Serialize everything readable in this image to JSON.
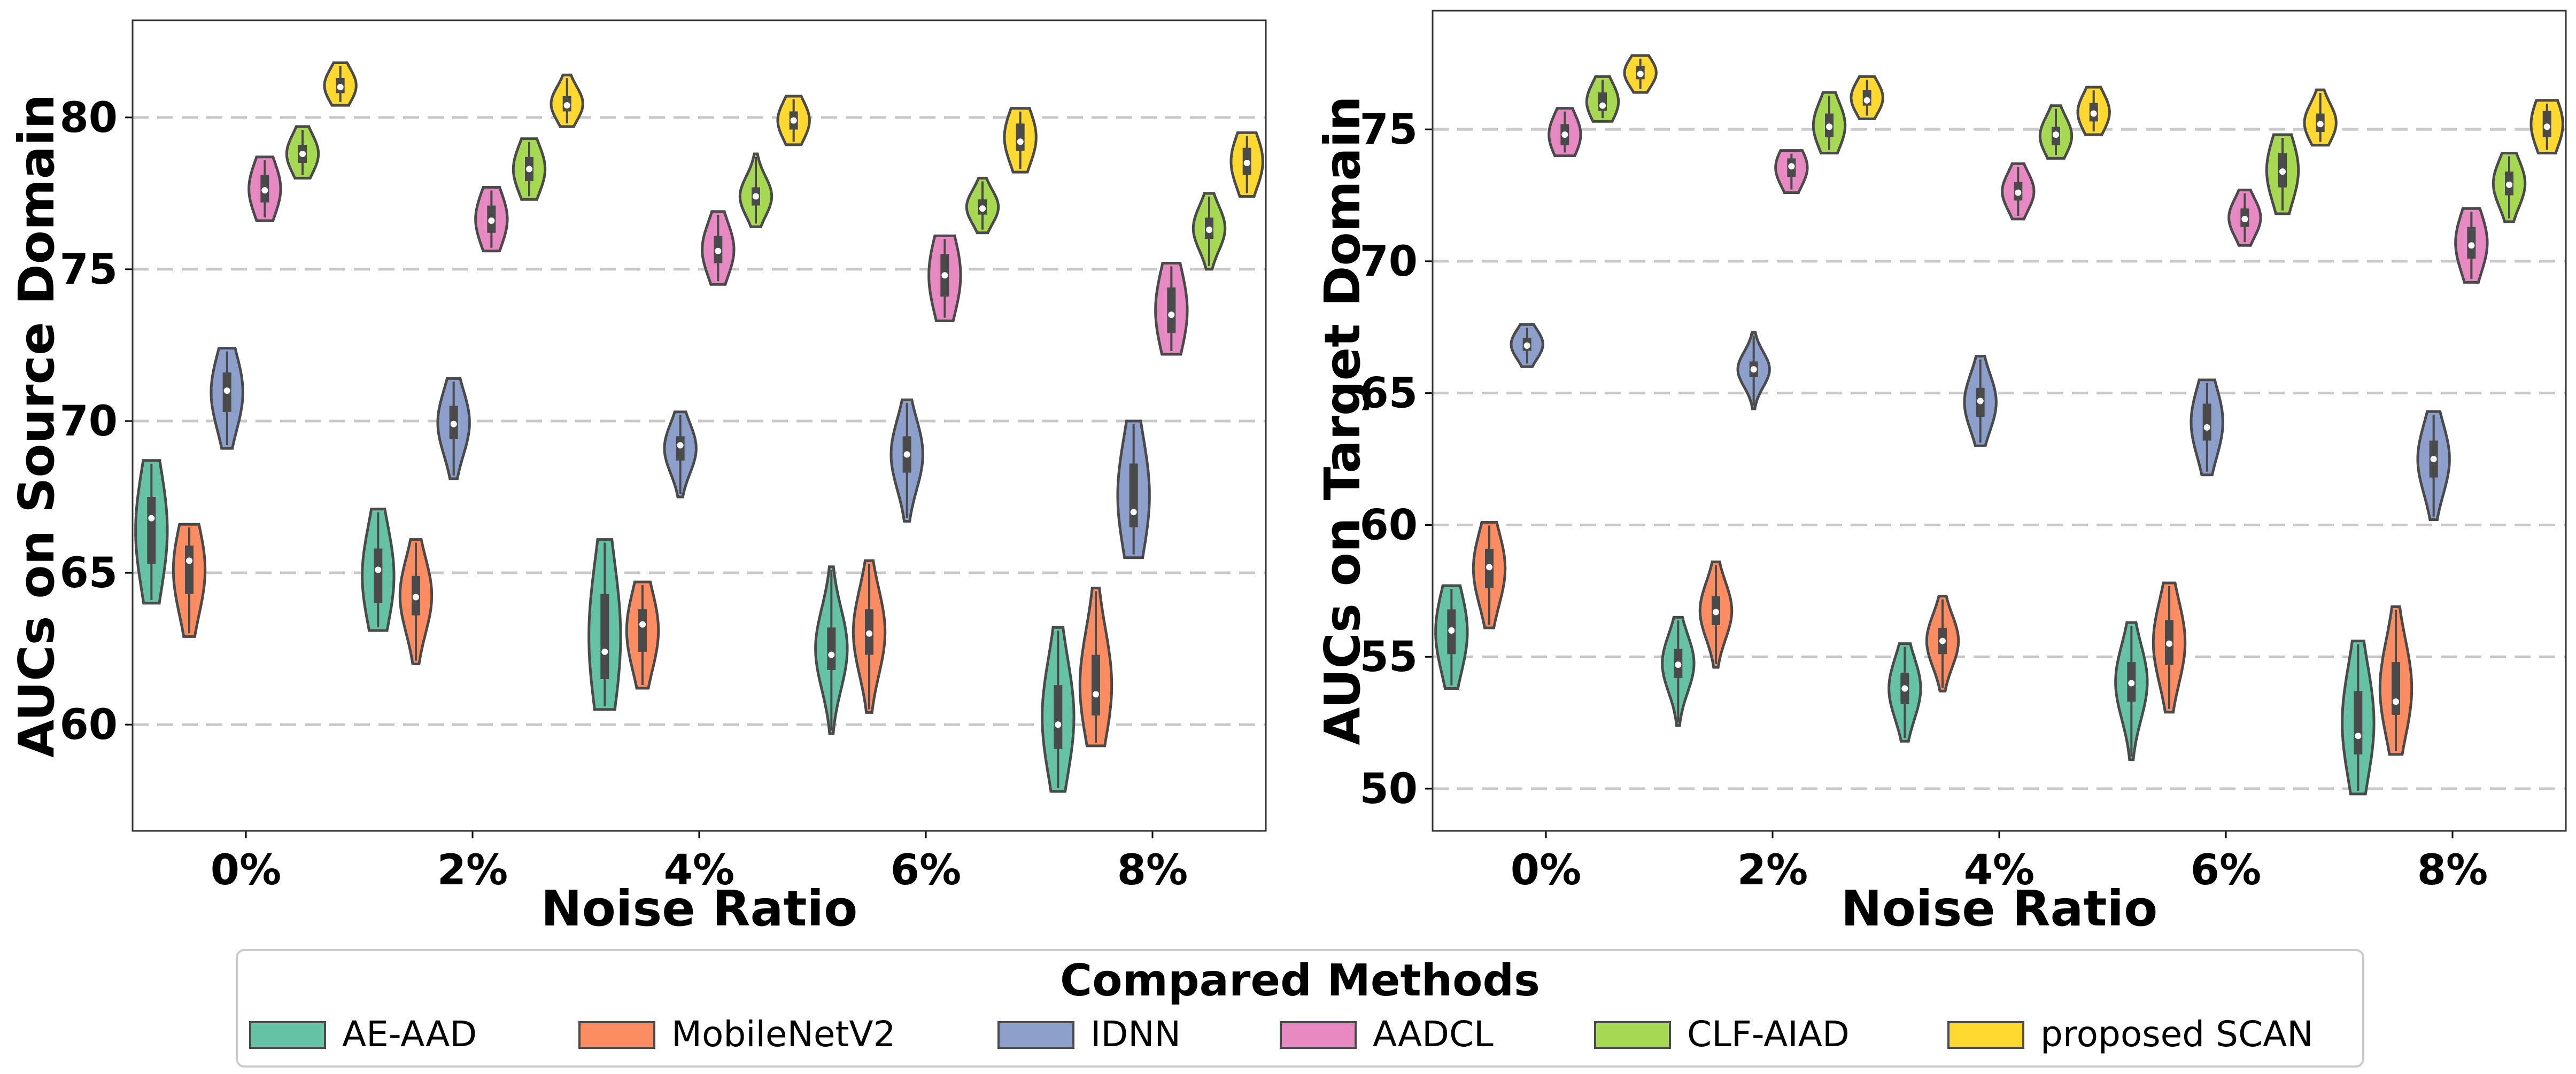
{
  "legend": {
    "title": "Compared Methods",
    "methods": [
      {
        "name": "AE-AAD",
        "color": "#66c2a5"
      },
      {
        "name": "MobileNetV2",
        "color": "#fc8d62"
      },
      {
        "name": "IDNN",
        "color": "#8da0cb"
      },
      {
        "name": "AADCL",
        "color": "#e78ac3"
      },
      {
        "name": "CLF-AIAD",
        "color": "#a6d854"
      },
      {
        "name": "proposed SCAN",
        "color": "#ffd92f"
      }
    ]
  },
  "chart_data": [
    {
      "type": "violin",
      "xlabel": "Noise Ratio",
      "ylabel": "AUCs on Source Domain",
      "categories": [
        "0%",
        "2%",
        "4%",
        "6%",
        "8%"
      ],
      "ylim": [
        56.5,
        83.2
      ],
      "yticks": [
        60,
        65,
        70,
        75,
        80
      ],
      "grid": "horizontal dashed",
      "series": [
        {
          "name": "AE-AAD",
          "median": [
            66.8,
            65.1,
            62.4,
            62.3,
            60.0
          ],
          "q1": [
            65.3,
            64.0,
            61.5,
            61.8,
            59.2
          ],
          "q3": [
            67.5,
            65.8,
            64.3,
            63.2,
            61.3
          ],
          "min": [
            64.0,
            63.1,
            60.5,
            59.7,
            57.8
          ],
          "max": [
            68.7,
            67.1,
            66.1,
            65.2,
            63.2
          ]
        },
        {
          "name": "MobileNetV2",
          "median": [
            65.4,
            64.2,
            63.3,
            63.0,
            61.0
          ],
          "q1": [
            64.3,
            63.6,
            62.4,
            62.3,
            60.3
          ],
          "q3": [
            65.9,
            64.9,
            63.8,
            63.8,
            62.3
          ],
          "min": [
            62.9,
            62.0,
            61.2,
            60.4,
            59.3
          ],
          "max": [
            66.6,
            66.1,
            64.7,
            65.4,
            64.5
          ]
        },
        {
          "name": "IDNN",
          "median": [
            71.0,
            69.9,
            69.2,
            68.9,
            67.0
          ],
          "q1": [
            70.3,
            69.4,
            68.7,
            68.3,
            66.5
          ],
          "q3": [
            71.6,
            70.5,
            69.5,
            69.5,
            68.6
          ],
          "min": [
            69.1,
            68.1,
            67.5,
            66.7,
            65.5
          ],
          "max": [
            72.4,
            71.4,
            70.3,
            70.7,
            70.0
          ]
        },
        {
          "name": "AADCL",
          "median": [
            77.6,
            76.6,
            75.6,
            74.8,
            73.5
          ],
          "q1": [
            77.2,
            76.2,
            75.2,
            74.1,
            72.9
          ],
          "q3": [
            78.1,
            77.1,
            76.1,
            75.5,
            74.4
          ],
          "min": [
            76.6,
            75.6,
            74.5,
            73.3,
            72.2
          ],
          "max": [
            78.7,
            77.7,
            76.9,
            76.1,
            75.2
          ]
        },
        {
          "name": "CLF-AIAD",
          "median": [
            78.8,
            78.3,
            77.4,
            77.0,
            76.3
          ],
          "q1": [
            78.5,
            77.9,
            77.1,
            76.8,
            76.0
          ],
          "q3": [
            79.1,
            78.7,
            77.7,
            77.3,
            76.7
          ],
          "min": [
            78.0,
            77.3,
            76.4,
            76.2,
            75.0
          ],
          "max": [
            79.7,
            79.3,
            78.8,
            78.0,
            77.5
          ]
        },
        {
          "name": "proposed SCAN",
          "median": [
            81.0,
            80.4,
            79.9,
            79.2,
            78.5
          ],
          "q1": [
            80.8,
            80.2,
            79.6,
            78.9,
            78.1
          ],
          "q3": [
            81.3,
            80.7,
            80.2,
            79.8,
            79.0
          ],
          "min": [
            80.4,
            79.7,
            79.1,
            78.2,
            77.4
          ],
          "max": [
            81.8,
            81.4,
            80.7,
            80.3,
            79.5
          ]
        }
      ]
    },
    {
      "type": "violin",
      "xlabel": "Noise Ratio",
      "ylabel": "AUCs on Target Domain",
      "categories": [
        "0%",
        "2%",
        "4%",
        "6%",
        "8%"
      ],
      "ylim": [
        48.4,
        79.5
      ],
      "yticks": [
        50,
        55,
        60,
        65,
        70,
        75
      ],
      "grid": "horizontal dashed",
      "series": [
        {
          "name": "AE-AAD",
          "median": [
            56.0,
            54.7,
            53.8,
            54.0,
            52.0
          ],
          "q1": [
            55.1,
            54.2,
            53.2,
            53.3,
            51.3
          ],
          "q3": [
            56.8,
            55.3,
            54.4,
            54.8,
            53.7
          ],
          "min": [
            53.8,
            52.4,
            51.8,
            51.1,
            49.8
          ],
          "max": [
            57.7,
            56.5,
            55.5,
            56.3,
            55.6
          ]
        },
        {
          "name": "MobileNetV2",
          "median": [
            58.4,
            56.7,
            55.6,
            55.5,
            53.3
          ],
          "q1": [
            57.6,
            56.2,
            55.1,
            54.7,
            52.8
          ],
          "q3": [
            59.1,
            57.3,
            56.1,
            56.4,
            54.8
          ],
          "min": [
            56.1,
            54.6,
            53.7,
            52.9,
            51.3
          ],
          "max": [
            60.1,
            58.6,
            57.3,
            57.8,
            56.9
          ]
        },
        {
          "name": "IDNN",
          "median": [
            66.8,
            65.9,
            64.7,
            63.7,
            62.5
          ],
          "q1": [
            66.6,
            65.6,
            64.1,
            63.2,
            61.8
          ],
          "q3": [
            67.1,
            66.2,
            65.2,
            64.6,
            63.2
          ],
          "min": [
            66.0,
            64.4,
            63.0,
            61.9,
            60.2
          ],
          "max": [
            67.6,
            67.3,
            66.4,
            65.5,
            64.3
          ]
        },
        {
          "name": "AADCL",
          "median": [
            74.8,
            73.6,
            72.6,
            71.6,
            70.6
          ],
          "q1": [
            74.4,
            73.2,
            72.3,
            71.3,
            70.1
          ],
          "q3": [
            75.2,
            73.9,
            73.0,
            72.0,
            71.3
          ],
          "min": [
            74.0,
            72.6,
            71.6,
            70.6,
            69.2
          ],
          "max": [
            75.8,
            74.2,
            73.7,
            72.7,
            72.0
          ]
        },
        {
          "name": "CLF-AIAD",
          "median": [
            75.9,
            75.1,
            74.8,
            73.4,
            72.9
          ],
          "q1": [
            75.7,
            74.7,
            74.4,
            72.8,
            72.5
          ],
          "q3": [
            76.4,
            75.6,
            75.1,
            74.1,
            73.4
          ],
          "min": [
            75.3,
            74.1,
            73.9,
            71.8,
            71.5
          ],
          "max": [
            77.0,
            76.4,
            75.9,
            74.8,
            74.1
          ]
        },
        {
          "name": "proposed SCAN",
          "median": [
            77.1,
            76.1,
            75.6,
            75.2,
            75.1
          ],
          "q1": [
            76.9,
            75.9,
            75.3,
            74.9,
            74.7
          ],
          "q3": [
            77.4,
            76.5,
            76.0,
            75.6,
            75.7
          ],
          "min": [
            76.4,
            75.4,
            74.8,
            74.4,
            74.1
          ],
          "max": [
            77.8,
            77.0,
            76.6,
            76.5,
            76.1
          ]
        }
      ]
    }
  ]
}
